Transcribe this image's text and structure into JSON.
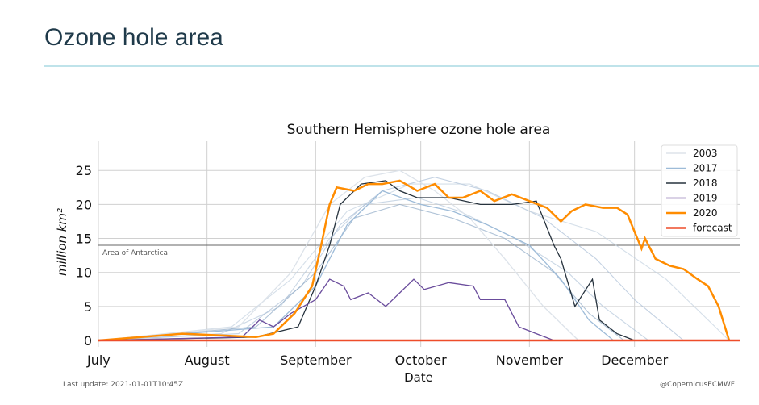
{
  "header": {
    "title": "Ozone hole area"
  },
  "footer": {
    "last_update": "Last update: 2021-01-01T10:45Z",
    "credit": "@CopernicusECMWF"
  },
  "chart_data": {
    "type": "line",
    "title": "Southern Hemisphere ozone hole area",
    "xlabel": "Date",
    "ylabel": "million km²",
    "xlim": [
      "2020-07-01",
      "2020-12-31"
    ],
    "ylim": [
      0,
      29.3
    ],
    "x_ticks": [
      {
        "date": "2020-07-01",
        "label": "July"
      },
      {
        "date": "2020-08-01",
        "label": "August"
      },
      {
        "date": "2020-09-01",
        "label": "September"
      },
      {
        "date": "2020-10-01",
        "label": "October"
      },
      {
        "date": "2020-11-01",
        "label": "November"
      },
      {
        "date": "2020-12-01",
        "label": "December"
      }
    ],
    "y_ticks": [
      0,
      5,
      10,
      15,
      20,
      25
    ],
    "grid": true,
    "legend_position": "top-right",
    "annotation": {
      "label": "Area of Antarctica",
      "value": 14
    },
    "series": [
      {
        "color": "#b4c6da",
        "x": [
          "2020-07-01",
          "2020-08-05",
          "2020-08-22",
          "2020-09-05",
          "2020-09-15",
          "2020-09-30",
          "2020-10-12",
          "2020-10-28",
          "2020-11-12",
          "2020-11-22",
          "2020-12-05"
        ],
        "y": [
          0,
          1,
          5,
          15,
          20,
          21,
          19,
          15,
          10,
          5,
          0
        ]
      },
      {
        "color": "#a9bed5",
        "x": [
          "2020-07-01",
          "2020-08-10",
          "2020-08-28",
          "2020-09-08",
          "2020-09-20",
          "2020-10-05",
          "2020-10-20",
          "2020-11-05",
          "2020-11-20",
          "2020-12-01",
          "2020-12-15"
        ],
        "y": [
          0,
          1,
          8,
          17,
          22,
          24,
          22,
          18,
          12,
          6,
          0
        ]
      },
      {
        "color": "#8faac6",
        "x": [
          "2020-07-01",
          "2020-08-15",
          "2020-09-01",
          "2020-09-12",
          "2020-09-25",
          "2020-10-10",
          "2020-10-25",
          "2020-11-08",
          "2020-11-18",
          "2020-11-28"
        ],
        "y": [
          0,
          2,
          10,
          18,
          20,
          18,
          15,
          10,
          4,
          0
        ]
      },
      {
        "color": "#c3d1e0",
        "x": [
          "2020-07-01",
          "2020-08-08",
          "2020-08-25",
          "2020-09-10",
          "2020-09-28",
          "2020-10-15",
          "2020-11-01",
          "2020-11-20",
          "2020-12-10",
          "2020-12-28"
        ],
        "y": [
          0,
          2,
          9,
          19,
          23,
          23,
          19,
          16,
          9,
          0
        ]
      },
      {
        "name": "2003",
        "color": "#dde3ea",
        "x": [
          "2020-07-01",
          "2020-08-10",
          "2020-08-25",
          "2020-09-05",
          "2020-09-15",
          "2020-09-25",
          "2020-10-05",
          "2020-10-15",
          "2020-10-25",
          "2020-11-05",
          "2020-11-15"
        ],
        "y": [
          0,
          2,
          10,
          20,
          24,
          25,
          22,
          18,
          12,
          5,
          0
        ]
      },
      {
        "name": "2017",
        "color": "#9dbbd8",
        "x": [
          "2020-07-01",
          "2020-08-20",
          "2020-09-01",
          "2020-09-10",
          "2020-09-20",
          "2020-10-01",
          "2020-10-10",
          "2020-10-20",
          "2020-11-01",
          "2020-11-10",
          "2020-11-18",
          "2020-11-25"
        ],
        "y": [
          0,
          2,
          8,
          17,
          22,
          20,
          19,
          17,
          14,
          9,
          3,
          0
        ]
      },
      {
        "name": "2018",
        "color": "#26323d",
        "x": [
          "2020-07-01",
          "2020-08-15",
          "2020-08-27",
          "2020-09-01",
          "2020-09-05",
          "2020-09-08",
          "2020-09-14",
          "2020-09-21",
          "2020-09-25",
          "2020-09-30",
          "2020-10-09",
          "2020-10-18",
          "2020-10-27",
          "2020-11-03",
          "2020-11-08",
          "2020-11-10",
          "2020-11-14",
          "2020-11-19",
          "2020-11-21",
          "2020-11-26",
          "2020-12-01"
        ],
        "y": [
          0,
          0.5,
          2,
          8,
          14,
          20,
          23,
          23.5,
          22,
          21,
          21,
          20,
          20,
          20.5,
          14,
          12,
          5,
          9,
          3,
          1,
          0
        ]
      },
      {
        "name": "2019",
        "color": "#6a4c9c",
        "x": [
          "2020-07-01",
          "2020-08-11",
          "2020-08-16",
          "2020-08-20",
          "2020-08-25",
          "2020-09-01",
          "2020-09-05",
          "2020-09-09",
          "2020-09-11",
          "2020-09-16",
          "2020-09-21",
          "2020-09-25",
          "2020-09-29",
          "2020-10-02",
          "2020-10-09",
          "2020-10-16",
          "2020-10-18",
          "2020-10-25",
          "2020-10-29",
          "2020-11-03",
          "2020-11-08"
        ],
        "y": [
          0,
          0.5,
          3,
          2,
          4,
          6,
          9,
          8,
          6,
          7,
          5,
          7,
          9,
          7.5,
          8.5,
          8,
          6,
          6,
          2,
          1,
          0
        ]
      },
      {
        "name": "2020",
        "color": "#ff8c00",
        "x": [
          "2020-07-01",
          "2020-07-25",
          "2020-08-15",
          "2020-08-20",
          "2020-08-26",
          "2020-08-31",
          "2020-09-03",
          "2020-09-05",
          "2020-09-07",
          "2020-09-12",
          "2020-09-16",
          "2020-09-20",
          "2020-09-25",
          "2020-09-30",
          "2020-10-05",
          "2020-10-09",
          "2020-10-13",
          "2020-10-18",
          "2020-10-22",
          "2020-10-27",
          "2020-11-01",
          "2020-11-06",
          "2020-11-10",
          "2020-11-13",
          "2020-11-17",
          "2020-11-22",
          "2020-11-26",
          "2020-11-29",
          "2020-12-03",
          "2020-12-04",
          "2020-12-07",
          "2020-12-11",
          "2020-12-15",
          "2020-12-19",
          "2020-12-22",
          "2020-12-25",
          "2020-12-28"
        ],
        "y": [
          0,
          1,
          0.5,
          1,
          4,
          8,
          15,
          20,
          22.5,
          22,
          23,
          23,
          23.5,
          22,
          23,
          21,
          21,
          22,
          20.5,
          21.5,
          20.5,
          19.5,
          17.5,
          19,
          20,
          19.5,
          19.5,
          18.5,
          13.5,
          15,
          12,
          11,
          10.5,
          9,
          8,
          5,
          0
        ]
      },
      {
        "name": "forecast",
        "color": "#ee4d2a",
        "x": [
          "2020-07-01",
          "2020-12-31"
        ],
        "y": [
          0,
          0
        ]
      }
    ]
  }
}
